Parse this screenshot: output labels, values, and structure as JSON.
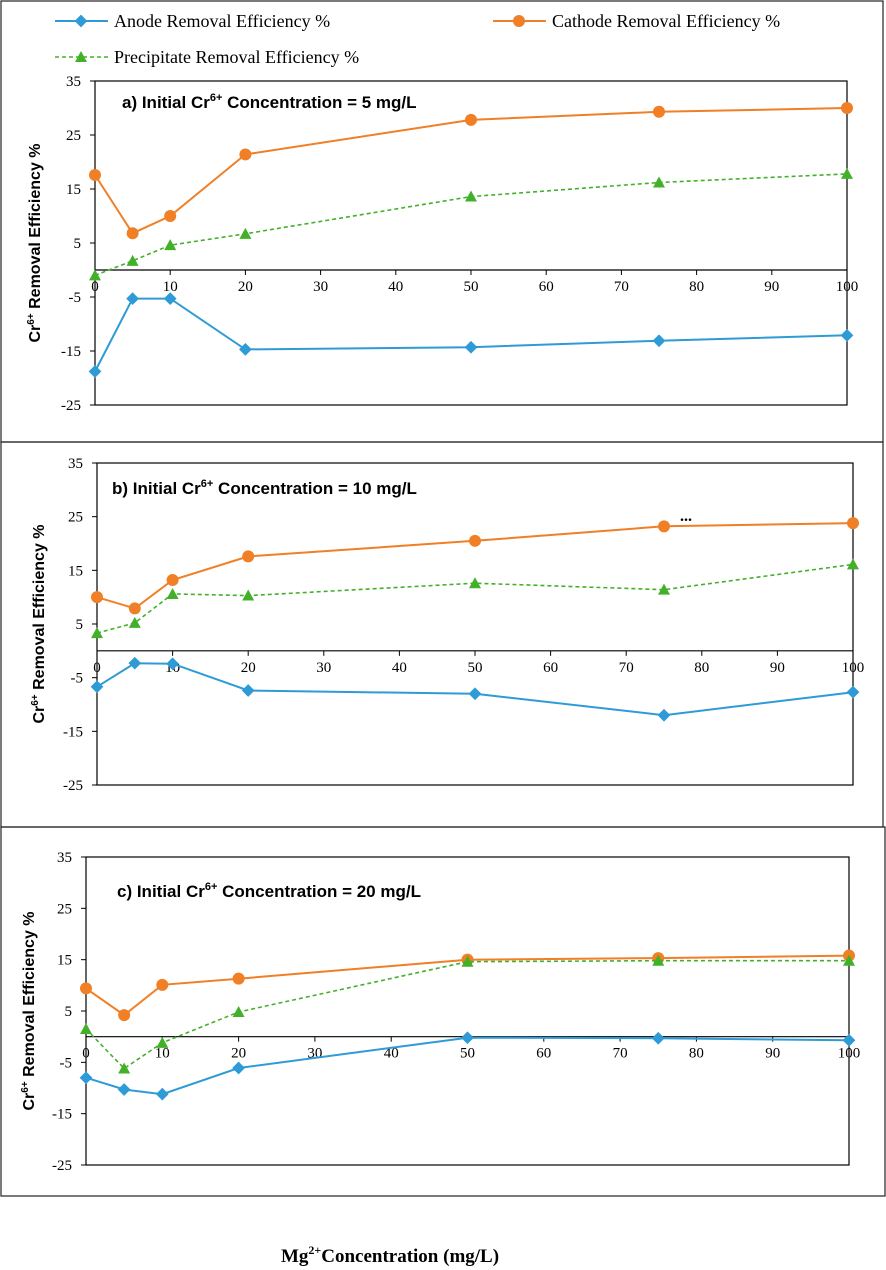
{
  "legend": {
    "anode": "Anode Removal Efficiency %",
    "cathode": "Cathode Removal Efficiency %",
    "precipitate": "Precipitate Removal Efficiency %"
  },
  "x_axis": {
    "label_base": "Mg",
    "label_sup": "2+",
    "label_rest": "Concentration (mg/L)"
  },
  "colors": {
    "anode": "#2e9bd6",
    "cathode": "#f07f25",
    "precipitate": "#43b02a"
  },
  "chart_data": [
    {
      "type": "line",
      "annotation": {
        "prefix": "a) Initial Cr",
        "sup": "6+",
        "suffix": " Concentration = 5 mg/L"
      },
      "ylabel": {
        "base": "Cr",
        "sup": "6+",
        "rest": " Removal Efficiency  %"
      },
      "xlabel": "Mg2+ Concentration (mg/L)",
      "xlim": [
        0,
        100
      ],
      "ylim": [
        -25,
        35
      ],
      "xticks": [
        0,
        10,
        20,
        30,
        40,
        50,
        60,
        70,
        80,
        90,
        100
      ],
      "yticks": [
        35,
        25,
        15,
        5,
        -5,
        -15,
        -25
      ],
      "x": [
        0,
        5,
        10,
        20,
        50,
        75,
        100
      ],
      "series": [
        {
          "name": "Anode Removal Efficiency %",
          "values": [
            -18.8,
            -5.3,
            -5.3,
            -14.7,
            -14.3,
            -13.1,
            -12.1
          ]
        },
        {
          "name": "Cathode Removal Efficiency %",
          "values": [
            17.6,
            6.8,
            10.0,
            21.4,
            27.8,
            29.3,
            30.0
          ]
        },
        {
          "name": "Precipitate Removal Efficiency %",
          "values": [
            -1.0,
            1.7,
            4.6,
            6.7,
            13.6,
            16.2,
            17.8
          ]
        }
      ]
    },
    {
      "type": "line",
      "annotation": {
        "prefix": "b)  Initial Cr",
        "sup": "6+",
        "suffix": " Concentration = 10 mg/L"
      },
      "ylabel": {
        "base": "Cr",
        "sup": "6+",
        "rest": " Removal Efficiency %"
      },
      "xlabel": "Mg2+ Concentration (mg/L)",
      "xlim": [
        0,
        100
      ],
      "ylim": [
        -25,
        35
      ],
      "xticks": [
        0,
        10,
        20,
        30,
        40,
        50,
        60,
        70,
        80,
        90,
        100
      ],
      "yticks": [
        35,
        25,
        15,
        5,
        -5,
        -15,
        -25
      ],
      "x": [
        0,
        5,
        10,
        20,
        50,
        75,
        100
      ],
      "extra_text": "...",
      "series": [
        {
          "name": "Anode Removal Efficiency %",
          "values": [
            -6.7,
            -2.3,
            -2.4,
            -7.4,
            -8.0,
            -12.0,
            -7.7
          ]
        },
        {
          "name": "Cathode Removal Efficiency %",
          "values": [
            10.0,
            7.9,
            13.2,
            17.6,
            20.5,
            23.2,
            23.8
          ]
        },
        {
          "name": "Precipitate Removal Efficiency %",
          "values": [
            3.3,
            5.2,
            10.6,
            10.3,
            12.6,
            11.4,
            16.1
          ]
        }
      ]
    },
    {
      "type": "line",
      "annotation": {
        "prefix": "c) Initial Cr",
        "sup": "6+",
        "suffix": " Concentration = 20 mg/L"
      },
      "ylabel": {
        "base": "Cr",
        "sup": "6+",
        "rest": " Removal Efficiency %"
      },
      "xlabel": "Mg2+ Concentration (mg/L)",
      "xlim": [
        0,
        100
      ],
      "ylim": [
        -25,
        35
      ],
      "xticks": [
        0,
        10,
        20,
        30,
        40,
        50,
        60,
        70,
        80,
        90,
        100
      ],
      "yticks": [
        35,
        25,
        15,
        5,
        -5,
        -15,
        -25
      ],
      "x": [
        0,
        5,
        10,
        20,
        50,
        75,
        100
      ],
      "series": [
        {
          "name": "Anode Removal Efficiency %",
          "values": [
            -8.0,
            -10.3,
            -11.2,
            -6.1,
            -0.2,
            -0.3,
            -0.7
          ]
        },
        {
          "name": "Cathode Removal Efficiency %",
          "values": [
            9.4,
            4.2,
            10.1,
            11.3,
            15.0,
            15.3,
            15.8
          ]
        },
        {
          "name": "Precipitate Removal Efficiency %",
          "values": [
            1.5,
            -6.2,
            -1.2,
            4.8,
            14.6,
            14.8,
            14.8
          ]
        }
      ]
    }
  ]
}
